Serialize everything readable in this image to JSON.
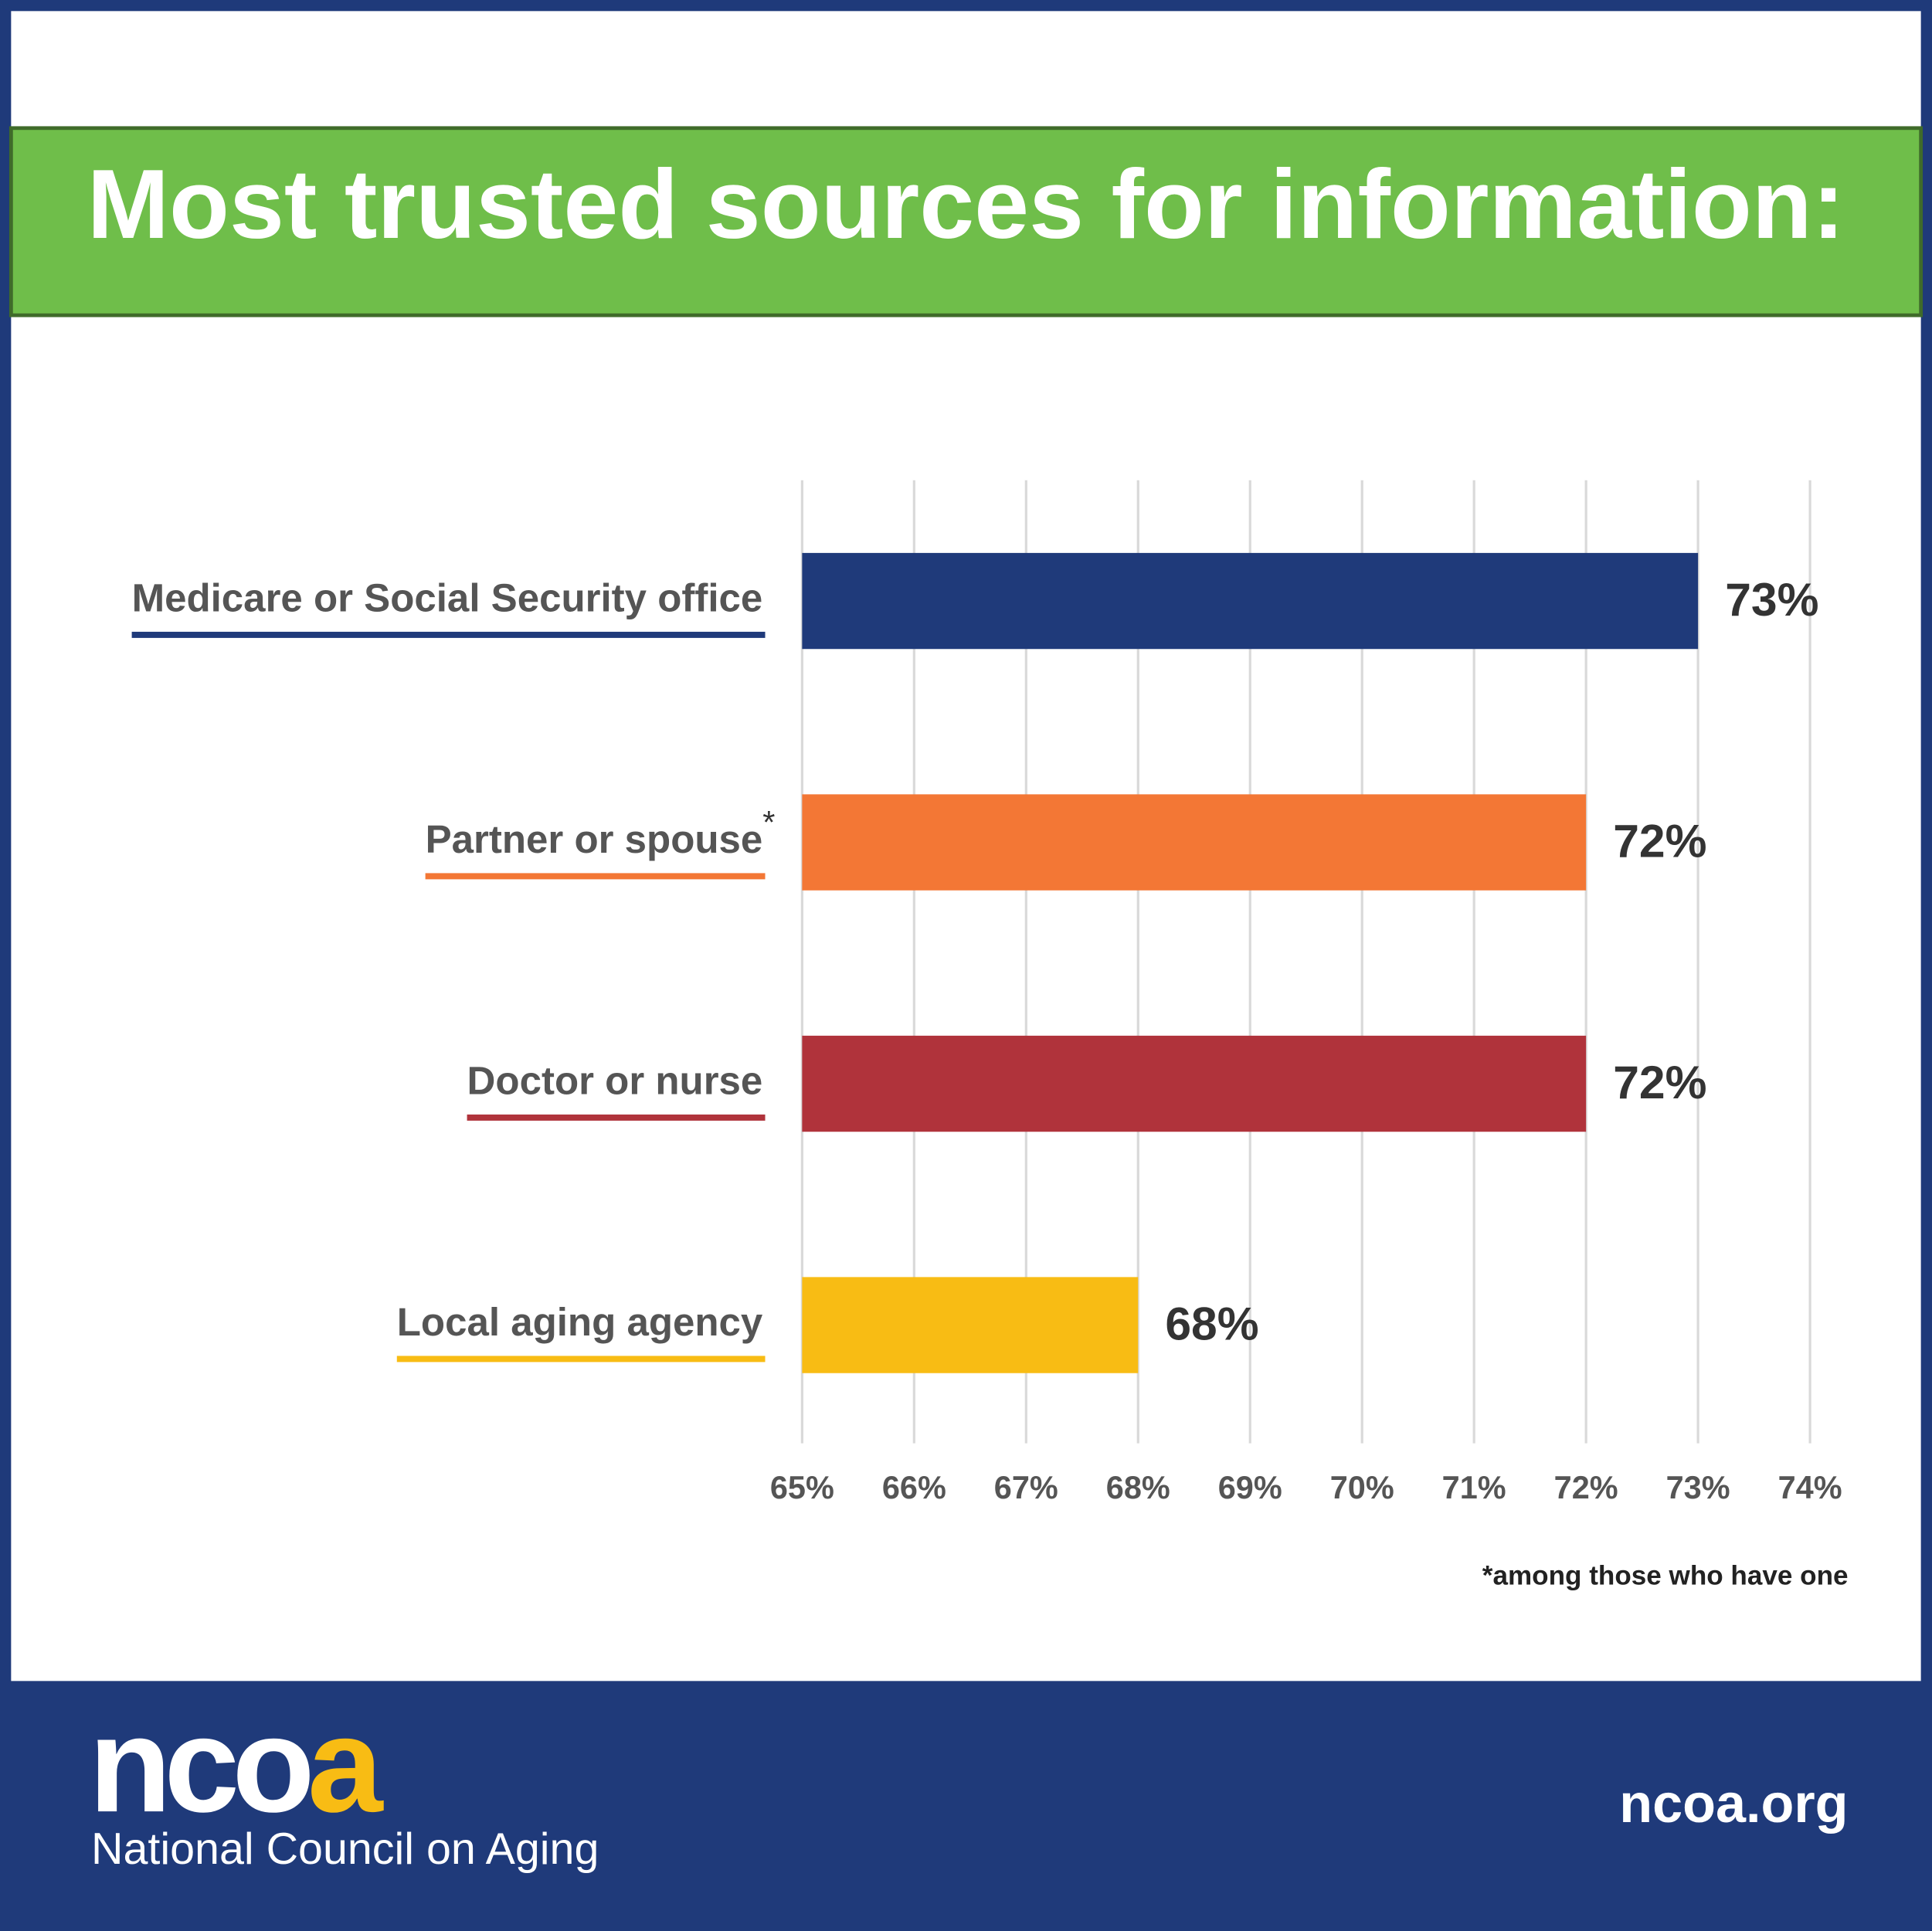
{
  "chart_data": {
    "type": "bar",
    "orientation": "horizontal",
    "title": "Most trusted sources for information:",
    "categories": [
      "Medicare or Social Security office",
      "Partner or spouse",
      "Doctor or nurse",
      "Local aging agency"
    ],
    "category_markers": [
      null,
      "*",
      null,
      null
    ],
    "values": [
      73,
      72,
      72,
      68
    ],
    "value_labels": [
      "73%",
      "72%",
      "72%",
      "68%"
    ],
    "colors": [
      "#1f3a7a",
      "#f37735",
      "#b0333b",
      "#f8bc14"
    ],
    "xlim": [
      65,
      74
    ],
    "xticks": [
      {
        "value": 65,
        "label": "65%"
      },
      {
        "value": 66,
        "label": "66%"
      },
      {
        "value": 67,
        "label": "67%"
      },
      {
        "value": 68,
        "label": "68%"
      },
      {
        "value": 69,
        "label": "69%"
      },
      {
        "value": 70,
        "label": "70%"
      },
      {
        "value": 71,
        "label": "71%"
      },
      {
        "value": 72,
        "label": "72%"
      },
      {
        "value": 73,
        "label": "73%"
      },
      {
        "value": 74,
        "label": "74%"
      }
    ],
    "grid": true,
    "footnote": "*among those who have one"
  },
  "footer": {
    "logo": "ncoa",
    "organization": "National Council on Aging",
    "website": "ncoa.org"
  }
}
